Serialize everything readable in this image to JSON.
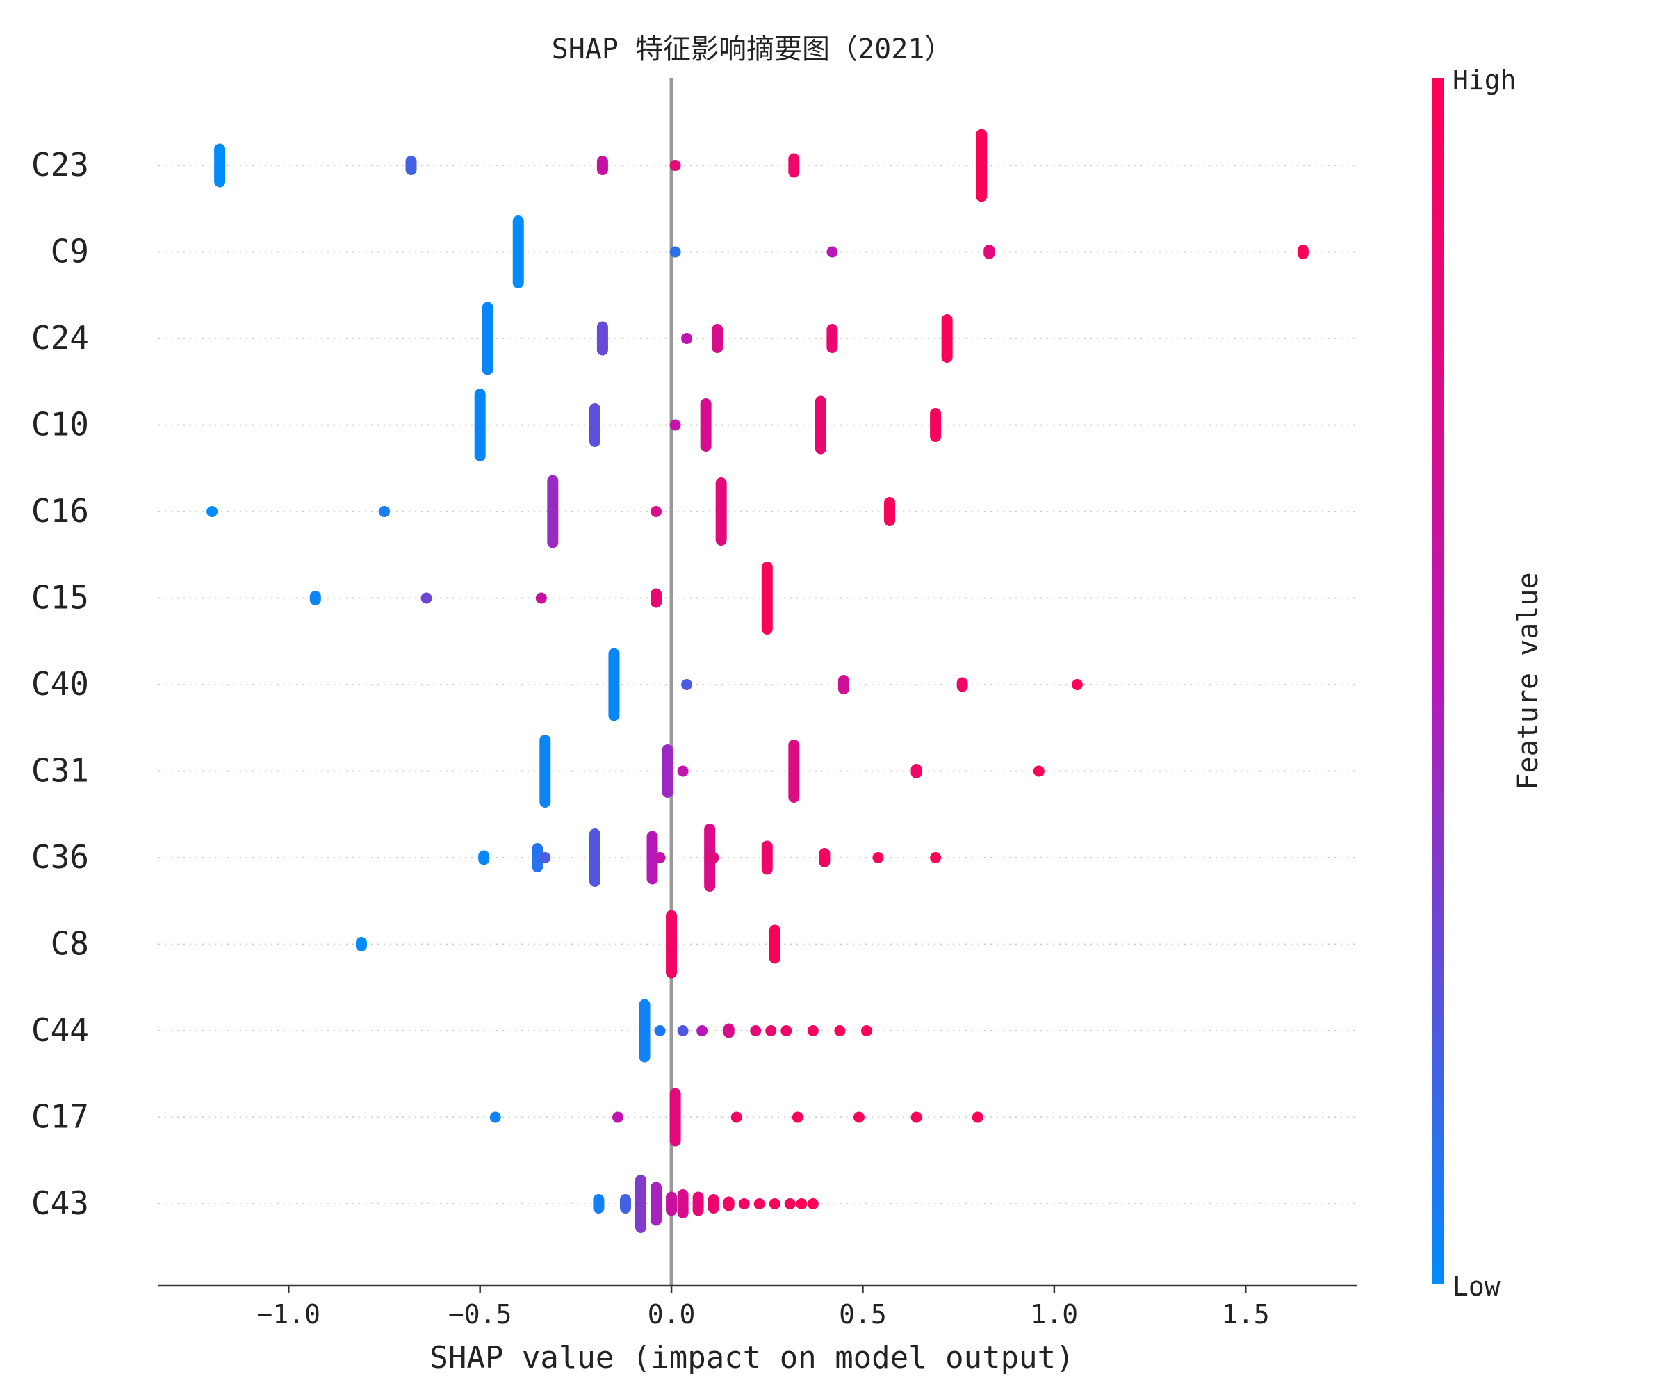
{
  "chart_data": {
    "type": "scatter",
    "title": "SHAP 特征影响摘要图（2021）",
    "xlabel": "SHAP value (impact on model output)",
    "xlim": [
      -1.34,
      1.79
    ],
    "xticks": [
      {
        "value": -1.0,
        "label": "−1.0"
      },
      {
        "value": -0.5,
        "label": "−0.5"
      },
      {
        "value": 0.0,
        "label": "0.0"
      },
      {
        "value": 0.5,
        "label": "0.5"
      },
      {
        "value": 1.0,
        "label": "1.0"
      },
      {
        "value": 1.5,
        "label": "1.5"
      }
    ],
    "grid": "dotted horizontal per feature",
    "colorbar": {
      "label": "Feature value",
      "high_label": "High",
      "low_label": "Low",
      "low_color": "#008bfb",
      "high_color": "#ff0052"
    },
    "features": [
      {
        "name": "C23",
        "points": [
          {
            "x": -1.18,
            "v": 0.0,
            "n": 9
          },
          {
            "x": -0.68,
            "v": 0.18,
            "n": 4
          },
          {
            "x": -0.18,
            "v": 0.6,
            "n": 4
          },
          {
            "x": 0.01,
            "v": 0.82,
            "n": 1
          },
          {
            "x": 0.32,
            "v": 0.88,
            "n": 5
          },
          {
            "x": 0.81,
            "v": 0.97,
            "n": 15
          }
        ]
      },
      {
        "name": "C9",
        "points": [
          {
            "x": -0.4,
            "v": 0.0,
            "n": 15
          },
          {
            "x": 0.01,
            "v": 0.12,
            "n": 1
          },
          {
            "x": 0.42,
            "v": 0.5,
            "n": 2
          },
          {
            "x": 0.83,
            "v": 0.78,
            "n": 3
          },
          {
            "x": 1.65,
            "v": 0.96,
            "n": 3
          }
        ]
      },
      {
        "name": "C24",
        "points": [
          {
            "x": -0.48,
            "v": 0.02,
            "n": 15
          },
          {
            "x": -0.18,
            "v": 0.28,
            "n": 7
          },
          {
            "x": 0.04,
            "v": 0.55,
            "n": 1
          },
          {
            "x": 0.12,
            "v": 0.72,
            "n": 6
          },
          {
            "x": 0.42,
            "v": 0.86,
            "n": 6
          },
          {
            "x": 0.72,
            "v": 0.95,
            "n": 10
          }
        ]
      },
      {
        "name": "C10",
        "points": [
          {
            "x": -0.5,
            "v": 0.02,
            "n": 15
          },
          {
            "x": -0.2,
            "v": 0.25,
            "n": 9
          },
          {
            "x": 0.01,
            "v": 0.58,
            "n": 1
          },
          {
            "x": 0.09,
            "v": 0.7,
            "n": 11
          },
          {
            "x": 0.39,
            "v": 0.86,
            "n": 12
          },
          {
            "x": 0.69,
            "v": 0.95,
            "n": 7
          }
        ]
      },
      {
        "name": "C16",
        "points": [
          {
            "x": -1.2,
            "v": 0.0,
            "n": 1
          },
          {
            "x": -0.75,
            "v": 0.06,
            "n": 2
          },
          {
            "x": -0.31,
            "v": 0.42,
            "n": 15
          },
          {
            "x": -0.04,
            "v": 0.72,
            "n": 2
          },
          {
            "x": 0.13,
            "v": 0.8,
            "n": 14
          },
          {
            "x": 0.57,
            "v": 0.94,
            "n": 6
          }
        ]
      },
      {
        "name": "C15",
        "points": [
          {
            "x": -0.93,
            "v": 0.03,
            "n": 3
          },
          {
            "x": -0.64,
            "v": 0.3,
            "n": 1
          },
          {
            "x": -0.34,
            "v": 0.62,
            "n": 1
          },
          {
            "x": -0.04,
            "v": 0.84,
            "n": 4
          },
          {
            "x": 0.25,
            "v": 0.97,
            "n": 15
          }
        ]
      },
      {
        "name": "C40",
        "points": [
          {
            "x": -0.15,
            "v": 0.02,
            "n": 15
          },
          {
            "x": 0.04,
            "v": 0.2,
            "n": 1
          },
          {
            "x": 0.45,
            "v": 0.66,
            "n": 4
          },
          {
            "x": 0.76,
            "v": 0.9,
            "n": 3
          },
          {
            "x": 1.06,
            "v": 0.97,
            "n": 1
          }
        ]
      },
      {
        "name": "C31",
        "points": [
          {
            "x": -0.33,
            "v": 0.03,
            "n": 15
          },
          {
            "x": -0.01,
            "v": 0.42,
            "n": 11
          },
          {
            "x": 0.03,
            "v": 0.55,
            "n": 2
          },
          {
            "x": 0.32,
            "v": 0.75,
            "n": 13
          },
          {
            "x": 0.64,
            "v": 0.9,
            "n": 3
          },
          {
            "x": 0.96,
            "v": 0.97,
            "n": 1
          }
        ]
      },
      {
        "name": "C36",
        "points": [
          {
            "x": -0.49,
            "v": 0.02,
            "n": 3
          },
          {
            "x": -0.35,
            "v": 0.1,
            "n": 6
          },
          {
            "x": -0.33,
            "v": 0.2,
            "n": 1
          },
          {
            "x": -0.2,
            "v": 0.22,
            "n": 12
          },
          {
            "x": -0.05,
            "v": 0.5,
            "n": 11
          },
          {
            "x": -0.03,
            "v": 0.58,
            "n": 1
          },
          {
            "x": 0.1,
            "v": 0.74,
            "n": 14
          },
          {
            "x": 0.11,
            "v": 0.78,
            "n": 1
          },
          {
            "x": 0.25,
            "v": 0.88,
            "n": 7
          },
          {
            "x": 0.4,
            "v": 0.93,
            "n": 4
          },
          {
            "x": 0.54,
            "v": 0.95,
            "n": 2
          },
          {
            "x": 0.69,
            "v": 0.97,
            "n": 1
          }
        ]
      },
      {
        "name": "C8",
        "points": [
          {
            "x": -0.81,
            "v": 0.0,
            "n": 3
          },
          {
            "x": 0.0,
            "v": 0.92,
            "n": 14
          },
          {
            "x": 0.27,
            "v": 0.97,
            "n": 8
          }
        ]
      },
      {
        "name": "C44",
        "points": [
          {
            "x": -0.07,
            "v": 0.04,
            "n": 13
          },
          {
            "x": -0.03,
            "v": 0.08,
            "n": 1
          },
          {
            "x": 0.03,
            "v": 0.22,
            "n": 1
          },
          {
            "x": 0.08,
            "v": 0.5,
            "n": 2
          },
          {
            "x": 0.15,
            "v": 0.72,
            "n": 3
          },
          {
            "x": 0.22,
            "v": 0.8,
            "n": 2
          },
          {
            "x": 0.26,
            "v": 0.86,
            "n": 1
          },
          {
            "x": 0.3,
            "v": 0.9,
            "n": 1
          },
          {
            "x": 0.37,
            "v": 0.93,
            "n": 2
          },
          {
            "x": 0.44,
            "v": 0.95,
            "n": 1
          },
          {
            "x": 0.51,
            "v": 0.97,
            "n": 1
          }
        ]
      },
      {
        "name": "C17",
        "points": [
          {
            "x": -0.46,
            "v": 0.04,
            "n": 2
          },
          {
            "x": -0.14,
            "v": 0.55,
            "n": 2
          },
          {
            "x": 0.01,
            "v": 0.8,
            "n": 12
          },
          {
            "x": 0.17,
            "v": 0.92,
            "n": 2
          },
          {
            "x": 0.33,
            "v": 0.95,
            "n": 1
          },
          {
            "x": 0.49,
            "v": 0.96,
            "n": 1
          },
          {
            "x": 0.64,
            "v": 0.97,
            "n": 1
          },
          {
            "x": 0.8,
            "v": 0.98,
            "n": 1
          }
        ]
      },
      {
        "name": "C43",
        "points": [
          {
            "x": -0.19,
            "v": 0.05,
            "n": 4
          },
          {
            "x": -0.12,
            "v": 0.18,
            "n": 4
          },
          {
            "x": -0.08,
            "v": 0.35,
            "n": 12
          },
          {
            "x": -0.04,
            "v": 0.45,
            "n": 9
          },
          {
            "x": 0.0,
            "v": 0.62,
            "n": 5
          },
          {
            "x": 0.03,
            "v": 0.72,
            "n": 6
          },
          {
            "x": 0.07,
            "v": 0.8,
            "n": 5
          },
          {
            "x": 0.11,
            "v": 0.86,
            "n": 4
          },
          {
            "x": 0.15,
            "v": 0.9,
            "n": 3
          },
          {
            "x": 0.19,
            "v": 0.92,
            "n": 2
          },
          {
            "x": 0.23,
            "v": 0.94,
            "n": 2
          },
          {
            "x": 0.27,
            "v": 0.95,
            "n": 1
          },
          {
            "x": 0.31,
            "v": 0.96,
            "n": 1
          },
          {
            "x": 0.34,
            "v": 0.97,
            "n": 1
          },
          {
            "x": 0.37,
            "v": 0.98,
            "n": 1
          }
        ]
      }
    ]
  }
}
